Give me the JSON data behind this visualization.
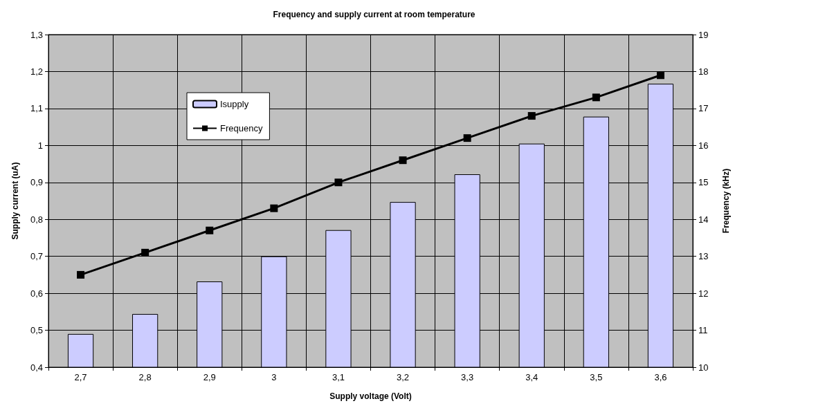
{
  "chart_data": {
    "type": "bar",
    "title": "Frequency and supply current at room temperature",
    "xlabel": "Supply voltage (Volt)",
    "ylabel": "Supply current (uA)",
    "y2label": "Frequency (kHz)",
    "categories": [
      "2,7",
      "2,8",
      "2,9",
      "3",
      "3,1",
      "3,2",
      "3,3",
      "3,4",
      "3,5",
      "3,6"
    ],
    "series": [
      {
        "name": "Isupply",
        "color": "#ccccff",
        "values": [
          0.49,
          0.544,
          0.632,
          0.7,
          0.771,
          0.847,
          0.922,
          1.005,
          1.078,
          1.167
        ]
      },
      {
        "name": "Frequency",
        "type": "line",
        "axis": "y2",
        "color": "#000000",
        "marker": "square",
        "line_style": "solid",
        "values": [
          12.5,
          13.1,
          13.7,
          14.3,
          15.0,
          15.6,
          16.2,
          16.8,
          17.3,
          17.9
        ]
      }
    ],
    "ylim": [
      0.4,
      1.3
    ],
    "yticks": [
      {
        "value": 0.4,
        "label": "0,4"
      },
      {
        "value": 0.5,
        "label": "0,5"
      },
      {
        "value": 0.6,
        "label": "0,6"
      },
      {
        "value": 0.7,
        "label": "0,7"
      },
      {
        "value": 0.8,
        "label": "0,8"
      },
      {
        "value": 0.9,
        "label": "0,9"
      },
      {
        "value": 1,
        "label": "1"
      },
      {
        "value": 1.1,
        "label": "1,1"
      },
      {
        "value": 1.2,
        "label": "1,2"
      },
      {
        "value": 1.3,
        "label": "1,3"
      }
    ],
    "y2lim": [
      10,
      19
    ],
    "y2ticks": [
      10,
      11,
      12,
      13,
      14,
      15,
      16,
      17,
      18,
      19
    ],
    "grid": true,
    "legend": "top left"
  }
}
